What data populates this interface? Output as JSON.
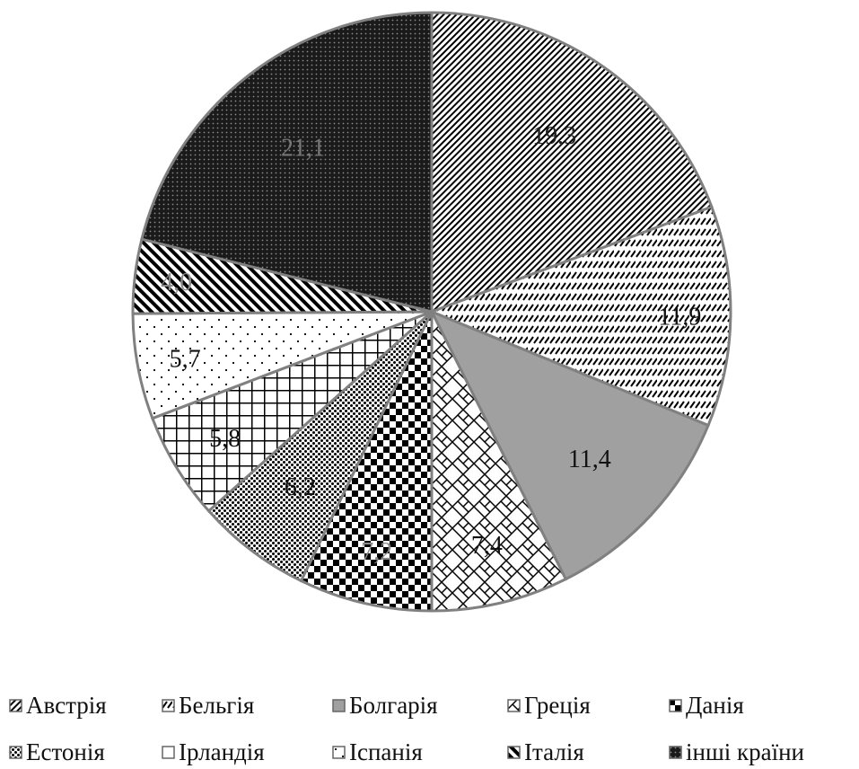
{
  "chart_data": {
    "type": "pie",
    "title": "",
    "categories": [
      "Австрія",
      "Бельгія",
      "Болгарія",
      "Греція",
      "Данія",
      "Естонія",
      "Ірландія",
      "Іспанія",
      "Італія",
      "інші країни"
    ],
    "values": [
      19.3,
      11.9,
      11.4,
      7.4,
      7.2,
      6.2,
      5.8,
      5.7,
      4.0,
      21.1
    ],
    "data_labels": [
      "19,3",
      "11,9",
      "11,4",
      "7,4",
      "7,2",
      "6,2",
      "5,8",
      "5,7",
      "4,0",
      "21,1"
    ],
    "legend_position": "bottom",
    "start_angle": "12 o'clock",
    "direction": "clockwise",
    "patterns": [
      "diag-fine",
      "dashed-diagonal",
      "solid-gray",
      "zigzag-weave",
      "checkerboard",
      "dotted-dense",
      "grid",
      "dots-sparse",
      "diag-wide",
      "dark-dots"
    ],
    "colors": {
      "gray": "#a0a0a0",
      "outline": "#808080",
      "ink": "#000000"
    }
  }
}
